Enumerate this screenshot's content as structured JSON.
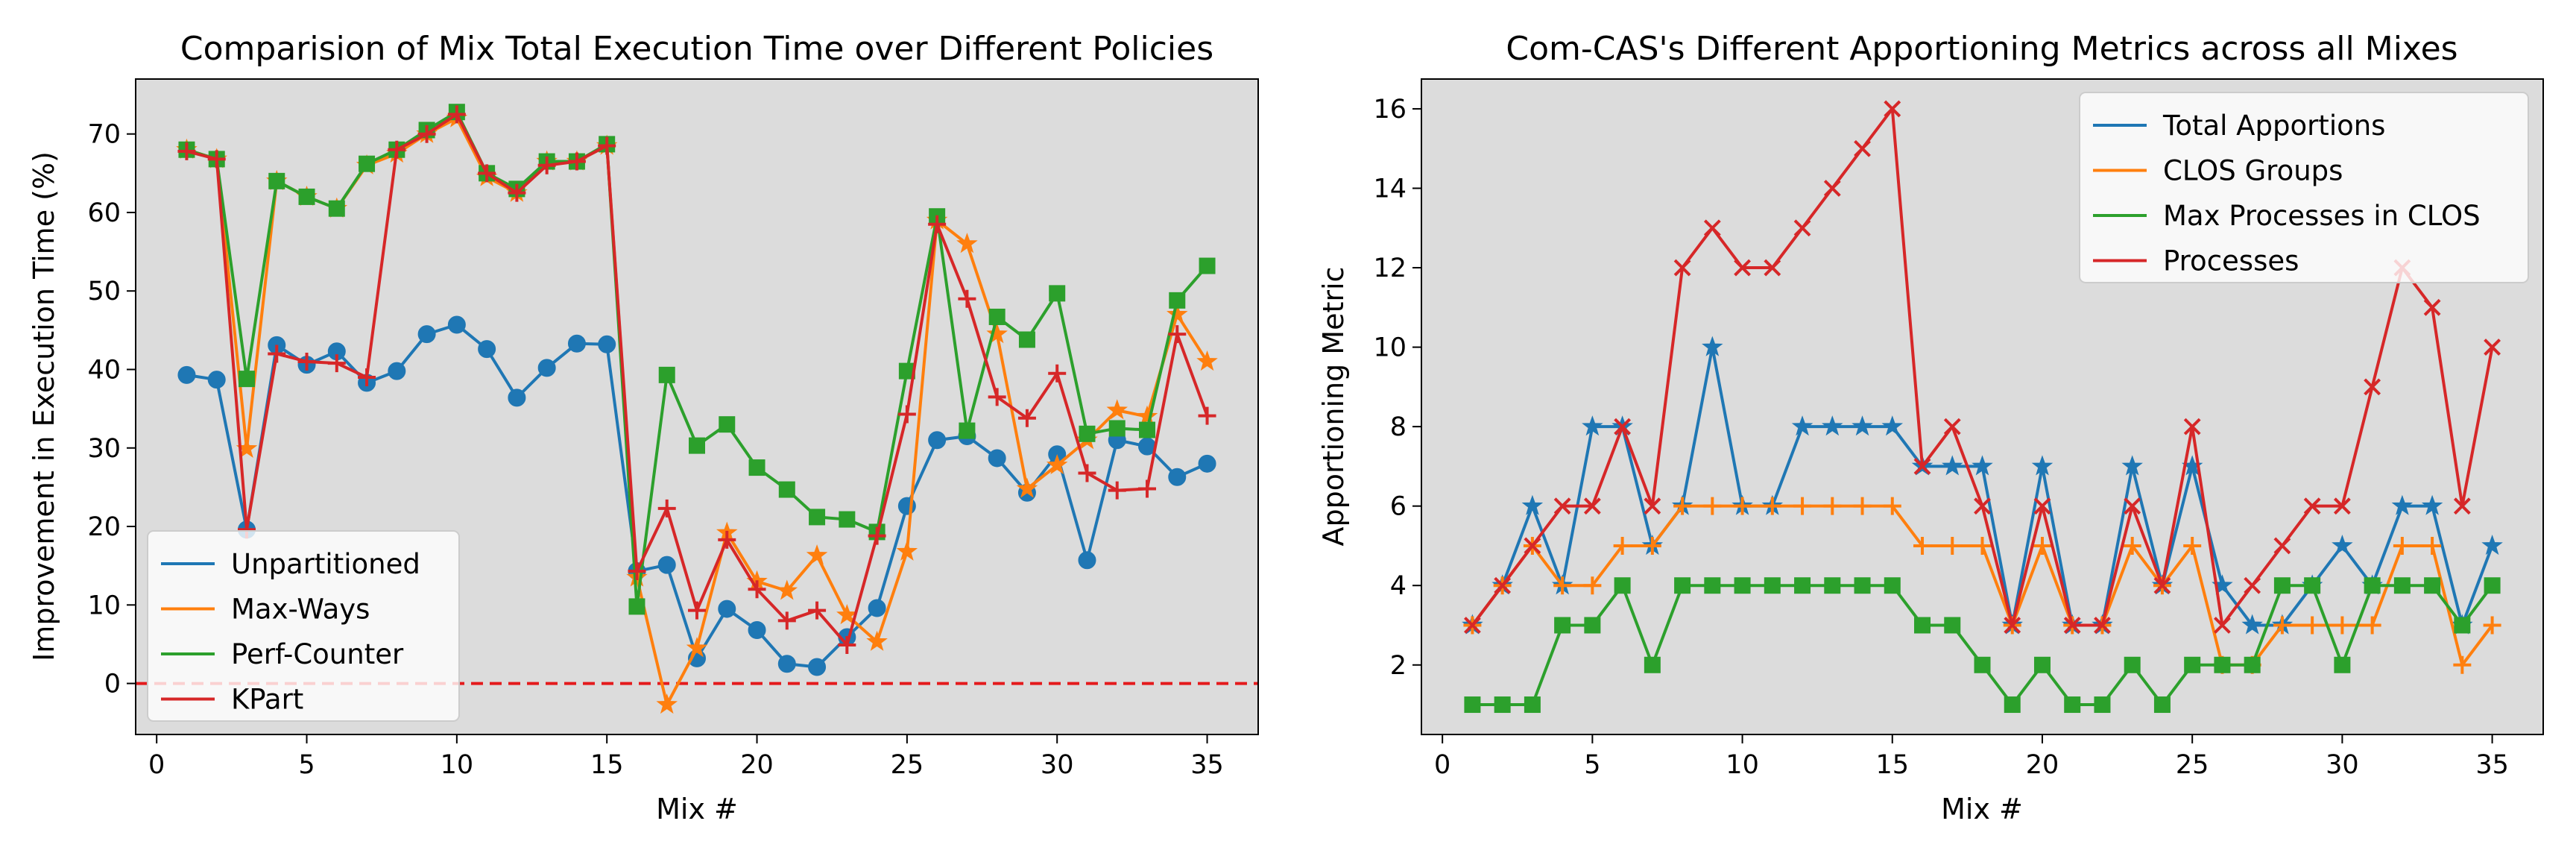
{
  "chart_data": [
    {
      "type": "line",
      "title": "Comparision of Mix Total Execution Time over Different Policies",
      "xlabel": "Mix #",
      "ylabel": "Improvement in Execution Time (%)",
      "xlim": [
        -0.7,
        36.7
      ],
      "ylim": [
        -6.5,
        77
      ],
      "xticks": [
        0,
        5,
        10,
        15,
        20,
        25,
        30,
        35
      ],
      "yticks": [
        0,
        10,
        20,
        30,
        40,
        50,
        60,
        70
      ],
      "legend_loc": "lower left",
      "reference_line": {
        "y": 0,
        "color": "#e41a1c",
        "style": "dashed"
      },
      "x": [
        1,
        2,
        3,
        4,
        5,
        6,
        7,
        8,
        9,
        10,
        11,
        12,
        13,
        14,
        15,
        16,
        17,
        18,
        19,
        20,
        21,
        22,
        23,
        24,
        25,
        26,
        27,
        28,
        29,
        30,
        31,
        32,
        33,
        34,
        35
      ],
      "series": [
        {
          "name": "Unpartitioned",
          "color": "#1f77b4",
          "marker": "o",
          "values": [
            39.3,
            38.7,
            19.6,
            43.1,
            40.6,
            42.3,
            38.3,
            39.8,
            44.5,
            45.7,
            42.6,
            36.4,
            40.2,
            43.3,
            43.2,
            14.3,
            15.1,
            3.2,
            9.5,
            6.8,
            2.5,
            2.1,
            5.9,
            9.6,
            22.6,
            31.0,
            31.5,
            28.7,
            24.3,
            29.2,
            15.7,
            31.0,
            30.2,
            26.3,
            28.0
          ]
        },
        {
          "name": "Max-Ways",
          "color": "#ff7f0e",
          "marker": "*",
          "values": [
            68.0,
            66.8,
            29.9,
            64.0,
            62.0,
            60.5,
            66.0,
            67.5,
            70.0,
            72.0,
            64.5,
            62.5,
            66.5,
            66.5,
            68.5,
            13.5,
            -2.7,
            4.5,
            19.2,
            13.0,
            11.8,
            16.3,
            8.7,
            5.3,
            16.8,
            59.0,
            56.0,
            44.5,
            24.8,
            27.8,
            31.0,
            34.8,
            34.0,
            47.0,
            41.0
          ]
        },
        {
          "name": "Perf-Counter",
          "color": "#2ca02c",
          "marker": "s",
          "values": [
            68.0,
            66.8,
            38.8,
            64.0,
            62.0,
            60.5,
            66.2,
            68.0,
            70.5,
            72.8,
            65.0,
            63.0,
            66.5,
            66.5,
            68.7,
            9.8,
            39.3,
            30.3,
            33.0,
            27.5,
            24.7,
            21.2,
            20.9,
            19.3,
            39.8,
            59.5,
            32.2,
            46.7,
            43.8,
            49.7,
            31.8,
            32.5,
            32.3,
            48.8,
            53.2
          ]
        },
        {
          "name": "KPart",
          "color": "#d62728",
          "marker": "+",
          "values": [
            67.8,
            66.8,
            19.6,
            42.0,
            41.0,
            40.8,
            39.0,
            68.0,
            70.0,
            72.5,
            65.0,
            62.5,
            66.0,
            66.5,
            68.5,
            14.3,
            22.3,
            9.3,
            18.3,
            12.0,
            8.0,
            9.3,
            4.9,
            18.8,
            34.3,
            58.5,
            49.0,
            36.5,
            33.8,
            39.5,
            26.8,
            24.6,
            24.8,
            44.5,
            34.1
          ]
        }
      ]
    },
    {
      "type": "line",
      "title": "Com-CAS's Different Apportioning Metrics across all Mixes",
      "xlabel": "Mix #",
      "ylabel": "Apportioning Metric",
      "xlim": [
        -0.7,
        36.7
      ],
      "ylim": [
        0.25,
        16.75
      ],
      "xticks": [
        0,
        5,
        10,
        15,
        20,
        25,
        30,
        35
      ],
      "yticks": [
        2,
        4,
        6,
        8,
        10,
        12,
        14,
        16
      ],
      "legend_loc": "upper right",
      "x": [
        1,
        2,
        3,
        4,
        5,
        6,
        7,
        8,
        9,
        10,
        11,
        12,
        13,
        14,
        15,
        16,
        17,
        18,
        19,
        20,
        21,
        22,
        23,
        24,
        25,
        26,
        27,
        28,
        29,
        30,
        31,
        32,
        33,
        34,
        35
      ],
      "series": [
        {
          "name": "Total Apportions",
          "color": "#1f77b4",
          "marker": "*",
          "values": [
            3,
            4,
            6,
            4,
            8,
            8,
            5,
            6,
            10,
            6,
            6,
            8,
            8,
            8,
            8,
            7,
            7,
            7,
            3,
            7,
            3,
            3,
            7,
            4,
            7,
            4,
            3,
            3,
            4,
            5,
            4,
            6,
            6,
            3,
            5
          ]
        },
        {
          "name": "CLOS Groups",
          "color": "#ff7f0e",
          "marker": "+",
          "values": [
            3,
            4,
            5,
            4,
            4,
            5,
            5,
            6,
            6,
            6,
            6,
            6,
            6,
            6,
            6,
            5,
            5,
            5,
            3,
            5,
            3,
            3,
            5,
            4,
            5,
            2,
            2,
            3,
            3,
            3,
            3,
            5,
            5,
            2,
            3
          ]
        },
        {
          "name": "Max Processes in CLOS",
          "color": "#2ca02c",
          "marker": "s",
          "values": [
            1,
            1,
            1,
            3,
            3,
            4,
            2,
            4,
            4,
            4,
            4,
            4,
            4,
            4,
            4,
            3,
            3,
            2,
            1,
            2,
            1,
            1,
            2,
            1,
            2,
            2,
            2,
            4,
            4,
            2,
            4,
            4,
            4,
            3,
            4
          ]
        },
        {
          "name": "Processes",
          "color": "#d62728",
          "marker": "x",
          "values": [
            3,
            4,
            5,
            6,
            6,
            8,
            6,
            12,
            13,
            12,
            12,
            13,
            14,
            15,
            16,
            7,
            8,
            6,
            3,
            6,
            3,
            3,
            6,
            4,
            8,
            3,
            4,
            5,
            6,
            6,
            9,
            12,
            11,
            6,
            10
          ]
        }
      ]
    }
  ]
}
